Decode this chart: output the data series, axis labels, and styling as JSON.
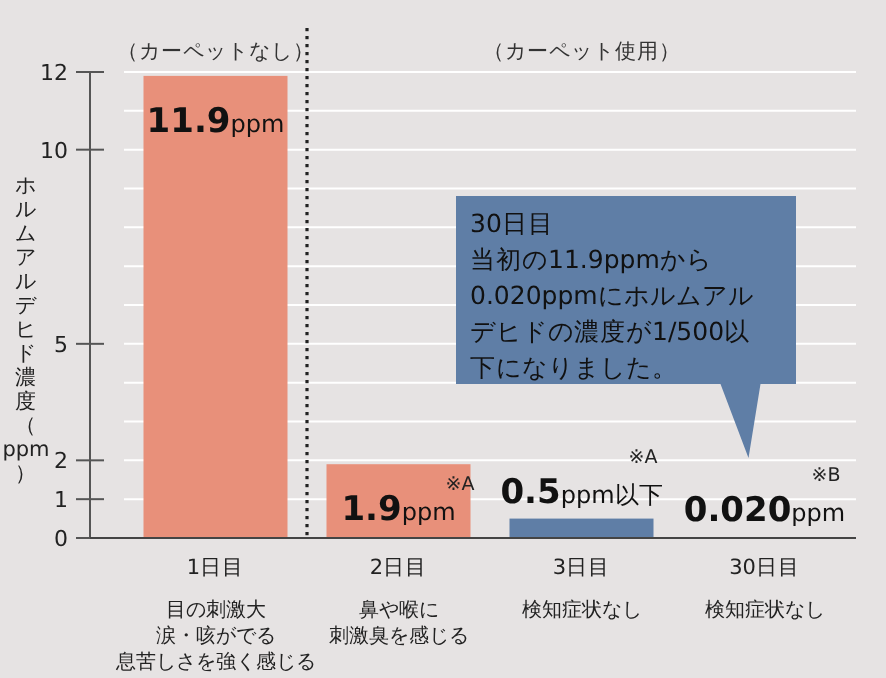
{
  "chart_data": {
    "type": "bar",
    "ylabel": "ホルムアルデヒド濃度（ppm）",
    "categories": [
      "1日目",
      "2日目",
      "3日目",
      "30日目"
    ],
    "values": [
      11.9,
      1.9,
      0.5,
      0.02
    ],
    "colors": [
      "#e8907a",
      "#e8907a",
      "#5f7ea6",
      "#5f7ea6"
    ],
    "value_labels": [
      "11.9ppm",
      "1.9ppm",
      "0.5ppm以下",
      "0.020ppm"
    ],
    "ylim": [
      0,
      12
    ],
    "yticks": [
      0,
      1,
      2,
      {
        "value": 3,
        "label": null
      },
      {
        "value": 4,
        "label": null
      },
      5,
      {
        "value": 6,
        "label": null
      },
      {
        "value": 7,
        "label": null
      },
      {
        "value": 8,
        "label": null
      },
      {
        "value": 9,
        "label": null
      },
      10,
      {
        "value": 11,
        "label": null
      },
      12
    ],
    "grid": "y",
    "annotations": [
      "（カーペットなし）",
      "（カーペット使用）",
      "30日目",
      "当初の11.9ppmから",
      "0.020ppmにホルムアル",
      "デヒドの濃度が1/500以",
      "下になりました。",
      "※A",
      "※A",
      "※B",
      "目の刺激大",
      "涙・咳がでる",
      "息苦しさを強く感じる",
      "鼻や喉に",
      "刺激臭を感じる",
      "検知症状なし",
      "検知症状なし"
    ]
  }
}
